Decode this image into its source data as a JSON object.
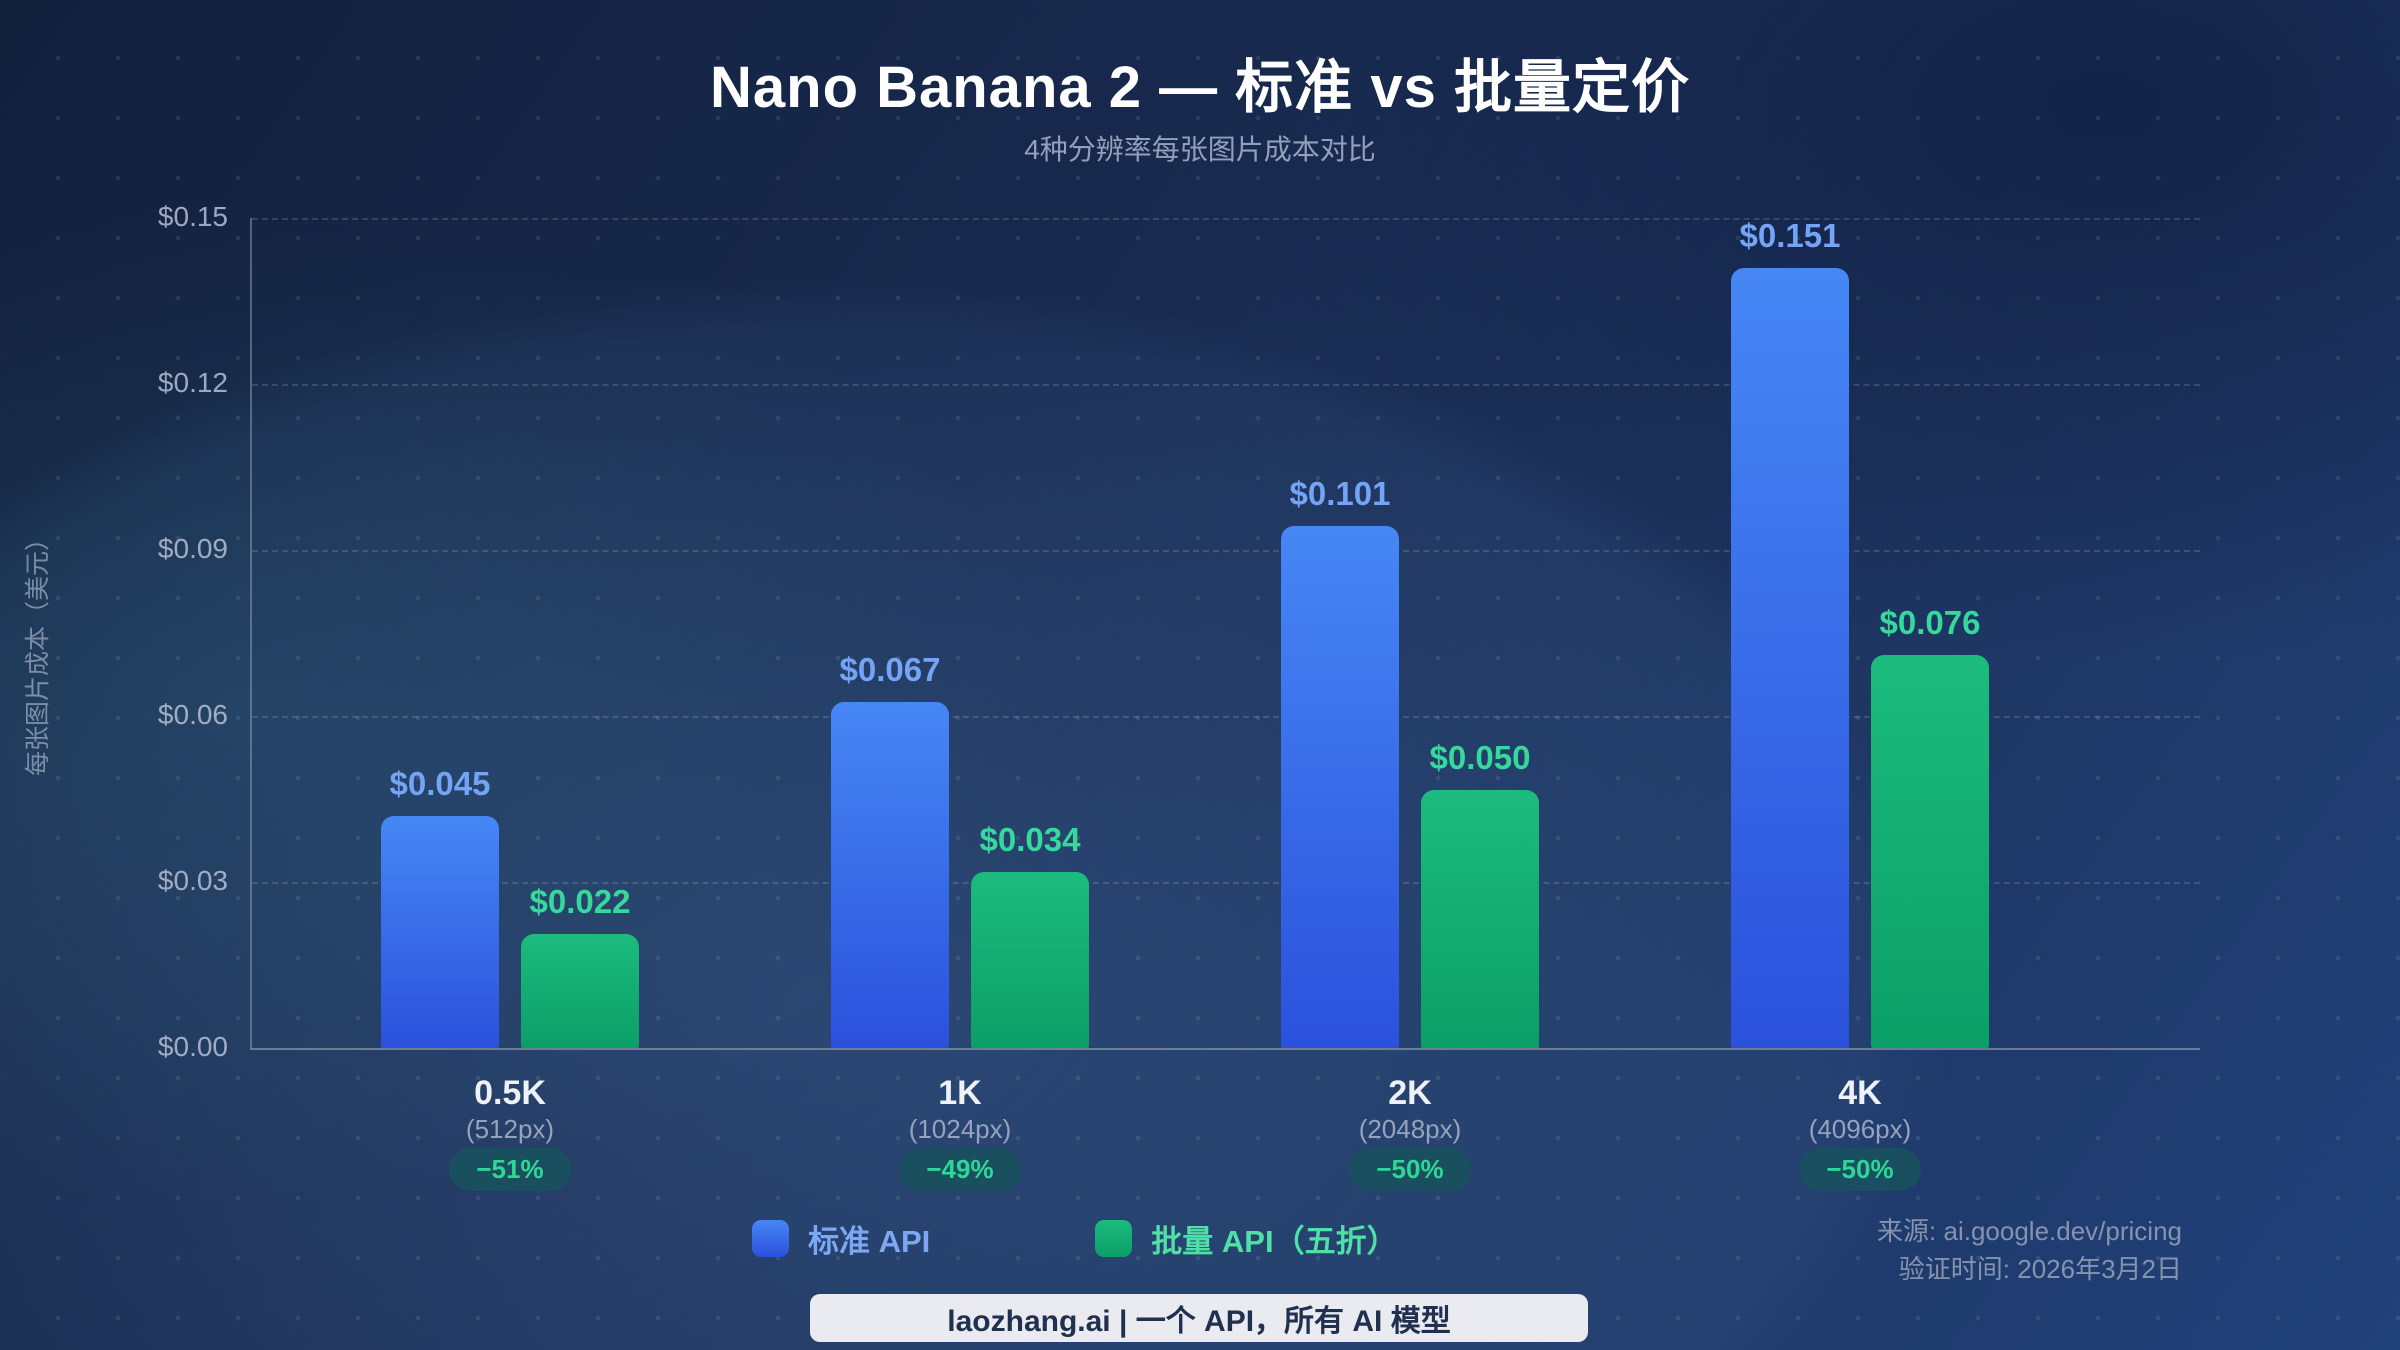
{
  "header": {
    "title": "Nano Banana 2 — 标准 vs 批量定价",
    "subtitle": "4种分辨率每张图片成本对比"
  },
  "y_axis": {
    "label": "每张图片成本（美元）",
    "ticks": [
      "$0.15",
      "$0.12",
      "$0.09",
      "$0.06",
      "$0.03",
      "$0.00"
    ]
  },
  "chart_data": {
    "type": "bar",
    "title": "Nano Banana 2 — 标准 vs 批量定价",
    "subtitle": "4种分辨率每张图片成本对比",
    "categories": [
      "0.5K",
      "1K",
      "2K",
      "4K"
    ],
    "category_sublabels": [
      "(512px)",
      "(1024px)",
      "(2048px)",
      "(4096px)"
    ],
    "discount_badges": [
      "−51%",
      "−49%",
      "−50%",
      "−50%"
    ],
    "series": [
      {
        "name": "标准 API",
        "color": "#3a6ff0",
        "values": [
          0.045,
          0.067,
          0.101,
          0.151
        ],
        "display_values": [
          "$0.045",
          "$0.067",
          "$0.101",
          "$0.151"
        ]
      },
      {
        "name": "批量 API（五折）",
        "color": "#12b074",
        "values": [
          0.022,
          0.034,
          0.05,
          0.076
        ],
        "display_values": [
          "$0.022",
          "$0.034",
          "$0.050",
          "$0.076"
        ]
      }
    ],
    "xlabel": "",
    "ylabel": "每张图片成本（美元）",
    "ylim": [
      0,
      0.15
    ],
    "grid": "dashed horizontal",
    "legend_position": "bottom"
  },
  "legend": {
    "items": [
      {
        "label": "标准 API",
        "text_color": "#7ba7f3",
        "swatch_color": "#3a6ff0"
      },
      {
        "label": "批量 API（五折）",
        "text_color": "#4ee0a6",
        "swatch_color": "#12b074"
      }
    ]
  },
  "footer": {
    "source": "来源: ai.google.dev/pricing",
    "verified": "验证时间: 2026年3月2日",
    "banner": "laozhang.ai | 一个 API，所有 AI 模型"
  },
  "colors": {
    "badge_bg": "#19505e",
    "badge_text": "#2dd795",
    "std_bar_top": "#4687f5",
    "std_bar_bottom": "#2b51dc",
    "batch_bar_top": "#1cbb7e",
    "batch_bar_bottom": "#0b9f68",
    "std_value_label": "#74a4f6",
    "batch_value_label": "#35d99c"
  }
}
